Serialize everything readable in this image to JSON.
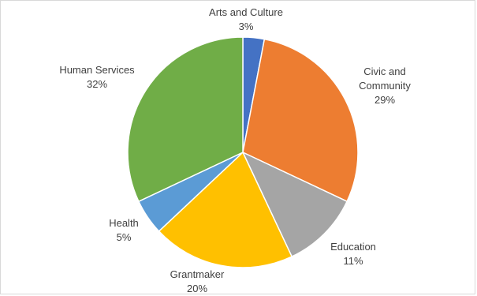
{
  "chart_data": {
    "type": "pie",
    "title": "",
    "start_angle_deg": 0,
    "direction": "clockwise",
    "legend": "none",
    "slices": [
      {
        "name": "Arts and Culture",
        "value": 3,
        "label": "3%",
        "color": "#4472C4"
      },
      {
        "name": "Civic and Community",
        "value": 29,
        "label": "29%",
        "color": "#ED7D31"
      },
      {
        "name": "Education",
        "value": 11,
        "label": "11%",
        "color": "#A5A5A5"
      },
      {
        "name": "Grantmaker",
        "value": 20,
        "label": "20%",
        "color": "#FFC000"
      },
      {
        "name": "Health",
        "value": 5,
        "label": "5%",
        "color": "#5B9BD5"
      },
      {
        "name": "Human Services",
        "value": 32,
        "label": "32%",
        "color": "#70AD47"
      }
    ]
  }
}
